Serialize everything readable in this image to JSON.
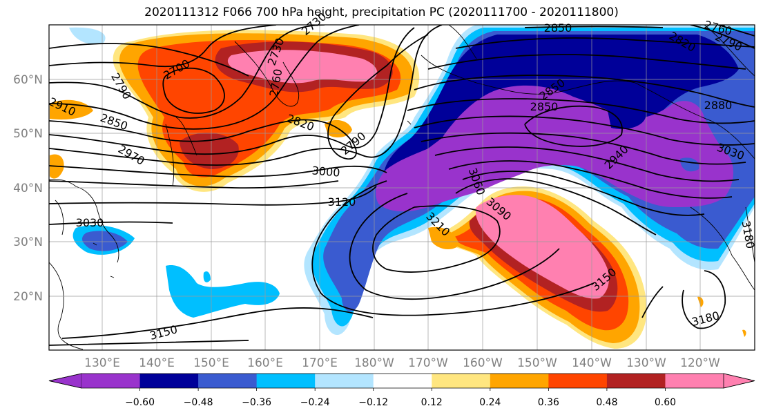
{
  "title": "2020111312 F066 700 hPa height, precipitation PC (2020111700 - 2020111800)",
  "map": {
    "lat_labels": [
      "60°N",
      "50°N",
      "40°N",
      "30°N",
      "20°N"
    ],
    "lon_labels": [
      "130°E",
      "140°E",
      "150°E",
      "160°E",
      "170°E",
      "180°W",
      "170°W",
      "160°W",
      "150°W",
      "140°W",
      "130°W",
      "120°W"
    ],
    "contour_labels": [
      "2850",
      "2760",
      "2730",
      "2790",
      "2820",
      "2700",
      "2730",
      "2760",
      "2790",
      "2850",
      "2910",
      "2850",
      "2970",
      "2820",
      "2790",
      "3000",
      "3120",
      "3030",
      "3210",
      "3060",
      "3090",
      "2940",
      "2850",
      "2880",
      "3030",
      "3150",
      "3180",
      "3150",
      "3180"
    ]
  },
  "colorbar": {
    "colors": [
      "#9933cc",
      "#000099",
      "#3a5bd0",
      "#00bfff",
      "#b3e5ff",
      "#ffffff",
      "#ffe680",
      "#ffa500",
      "#ff4500",
      "#b22222",
      "#ff80b0"
    ],
    "ticks": [
      "−0.60",
      "−0.48",
      "−0.36",
      "−0.24",
      "−0.12",
      "0.12",
      "0.24",
      "0.36",
      "0.48",
      "0.60"
    ]
  }
}
